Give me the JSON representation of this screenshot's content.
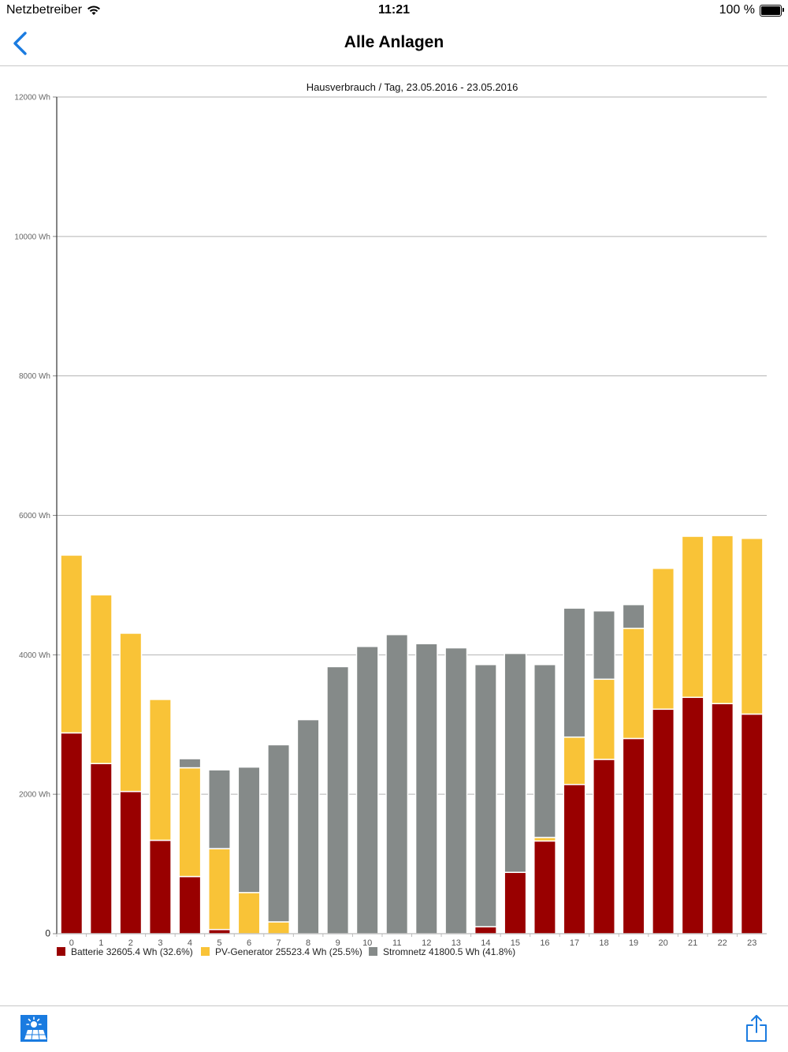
{
  "status_bar": {
    "carrier": "Netzbetreiber",
    "time": "11:21",
    "battery": "100 %"
  },
  "nav": {
    "title": "Alle Anlagen",
    "back_icon": "chevron-left-icon"
  },
  "toolbar": {
    "app_icon": "solar-panel-icon",
    "share_icon": "share-icon"
  },
  "colors": {
    "batterie": "#990000",
    "pv": "#f9c337",
    "netz": "#858a89",
    "accent": "#1a7be0"
  },
  "chart_data": {
    "type": "bar",
    "stacked": true,
    "title": "Hausverbrauch / Tag, 23.05.2016 - 23.05.2016",
    "categories": [
      "0",
      "1",
      "2",
      "3",
      "4",
      "5",
      "6",
      "7",
      "8",
      "9",
      "10",
      "11",
      "12",
      "13",
      "14",
      "15",
      "16",
      "17",
      "18",
      "19",
      "20",
      "21",
      "22",
      "23"
    ],
    "ylim": [
      0,
      12000
    ],
    "yticks": [
      0,
      2000,
      4000,
      6000,
      8000,
      10000,
      12000
    ],
    "ytick_labels": [
      "0",
      "2000 Wh",
      "4000 Wh",
      "6000 Wh",
      "8000 Wh",
      "10000 Wh",
      "12000 Wh"
    ],
    "grid": true,
    "legend_position": "bottom-left",
    "series": [
      {
        "name": "Batterie 32605.4 Wh (32.6%)",
        "color": "#990000",
        "values": [
          2880,
          2440,
          2040,
          1340,
          820,
          60,
          0,
          0,
          0,
          0,
          0,
          0,
          0,
          0,
          100,
          880,
          1330,
          2140,
          2500,
          2800,
          3220,
          3390,
          3300,
          3150
        ]
      },
      {
        "name": "PV-Generator 25523.4 Wh (25.5%)",
        "color": "#f9c337",
        "values": [
          2550,
          2420,
          2270,
          2020,
          1560,
          1160,
          590,
          170,
          0,
          0,
          0,
          0,
          0,
          0,
          0,
          0,
          50,
          680,
          1150,
          1580,
          2020,
          2310,
          2410,
          2520
        ]
      },
      {
        "name": "Stromnetz 41800.5 Wh (41.8%)",
        "color": "#858a89",
        "values": [
          0,
          0,
          0,
          0,
          130,
          1130,
          1800,
          2540,
          3070,
          3830,
          4120,
          4290,
          4160,
          4100,
          3760,
          3140,
          2480,
          1850,
          980,
          340,
          0,
          0,
          0,
          0
        ]
      }
    ]
  }
}
